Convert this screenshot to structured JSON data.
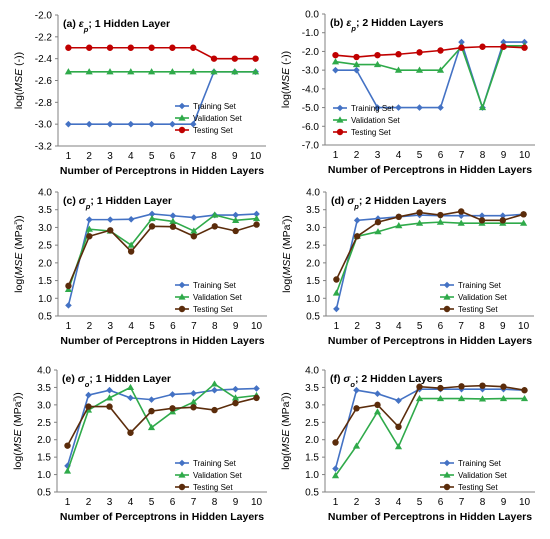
{
  "colors": {
    "training": "#4472C4",
    "validation": "#2FAA4A",
    "testing_red": "#C00000",
    "testing_brown": "#5B2C0B",
    "axis": "#808080"
  },
  "chart_data": [
    {
      "type": "line",
      "title": "(a) εp; 1 Hidden Layer",
      "xlabel": "Number of Perceptrons in Hidden Layers",
      "ylabel": "log(MSE (-))",
      "x": [
        1,
        2,
        3,
        4,
        5,
        6,
        7,
        8,
        9,
        10
      ],
      "ylim": [
        -3.2,
        -2.0
      ],
      "yticks": [
        "-2.0",
        "-2.2",
        "-2.4",
        "-2.6",
        "-2.8",
        "-3.0",
        "-3.2"
      ],
      "legend_position": "bottom-right",
      "series": [
        {
          "name": "Training Set",
          "color": "#4472C4",
          "marker": "diamond",
          "values": [
            -3.0,
            -3.0,
            -3.0,
            -3.0,
            -3.0,
            -3.0,
            -3.0,
            -2.52,
            -2.52,
            -2.52
          ]
        },
        {
          "name": "Validation Set",
          "color": "#2FAA4A",
          "marker": "triangle",
          "values": [
            -2.52,
            -2.52,
            -2.52,
            -2.52,
            -2.52,
            -2.52,
            -2.52,
            -2.52,
            -2.52,
            -2.52
          ]
        },
        {
          "name": "Testing Set",
          "color": "#C00000",
          "marker": "circle",
          "values": [
            -2.3,
            -2.3,
            -2.3,
            -2.3,
            -2.3,
            -2.3,
            -2.3,
            -2.4,
            -2.4,
            -2.4
          ]
        }
      ]
    },
    {
      "type": "line",
      "title": "(b) εp; 2 Hidden Layers",
      "xlabel": "Number of Perceptrons in Hidden Layers",
      "ylabel": "log(MSE (-))",
      "x": [
        1,
        2,
        3,
        4,
        5,
        6,
        7,
        8,
        9,
        10
      ],
      "ylim": [
        -7.0,
        0.0
      ],
      "yticks": [
        "0.0",
        "-1.0",
        "-2.0",
        "-3.0",
        "-4.0",
        "-5.0",
        "-6.0",
        "-7.0"
      ],
      "legend_position": "bottom-left",
      "series": [
        {
          "name": "Training Set",
          "color": "#4472C4",
          "marker": "diamond",
          "values": [
            -3.0,
            -3.0,
            -5.0,
            -5.0,
            -5.0,
            -5.0,
            -1.5,
            -5.0,
            -1.5,
            -1.5
          ]
        },
        {
          "name": "Validation Set",
          "color": "#2FAA4A",
          "marker": "triangle",
          "values": [
            -2.55,
            -2.7,
            -2.7,
            -3.0,
            -3.0,
            -3.0,
            -1.75,
            -5.0,
            -1.7,
            -1.7
          ]
        },
        {
          "name": "Testing Set",
          "color": "#C00000",
          "marker": "circle",
          "values": [
            -2.2,
            -2.3,
            -2.2,
            -2.15,
            -2.05,
            -1.95,
            -1.8,
            -1.75,
            -1.75,
            -1.8
          ]
        }
      ]
    },
    {
      "type": "line",
      "title": "(c) σp; 1 Hidden Layer",
      "xlabel": "Number of Perceptrons in Hidden Layers",
      "ylabel": "log(MSE (MPa²))",
      "x": [
        1,
        2,
        3,
        4,
        5,
        6,
        7,
        8,
        9,
        10
      ],
      "ylim": [
        0.5,
        4.0
      ],
      "yticks": [
        "4.0",
        "3.5",
        "3.0",
        "2.5",
        "2.0",
        "1.5",
        "1.0",
        "0.5"
      ],
      "legend_position": "bottom-right",
      "series": [
        {
          "name": "Training Set",
          "color": "#4472C4",
          "marker": "diamond",
          "values": [
            0.8,
            3.22,
            3.22,
            3.23,
            3.38,
            3.33,
            3.28,
            3.35,
            3.35,
            3.38
          ]
        },
        {
          "name": "Validation Set",
          "color": "#2FAA4A",
          "marker": "triangle",
          "values": [
            1.25,
            2.95,
            2.9,
            2.5,
            3.25,
            3.17,
            2.9,
            3.35,
            3.2,
            3.25
          ]
        },
        {
          "name": "Testing Set",
          "color": "#5B2C0B",
          "marker": "circle",
          "values": [
            1.35,
            2.75,
            2.92,
            2.32,
            3.03,
            3.02,
            2.75,
            3.03,
            2.9,
            3.08
          ]
        }
      ]
    },
    {
      "type": "line",
      "title": "(d) σp; 2 Hidden Layers",
      "xlabel": "Number of Perceptrons in Hidden Layers",
      "ylabel": "log(MSE (MPa²))",
      "x": [
        1,
        2,
        3,
        4,
        5,
        6,
        7,
        8,
        9,
        10
      ],
      "ylim": [
        0.5,
        4.0
      ],
      "yticks": [
        "4.0",
        "3.5",
        "3.0",
        "2.5",
        "2.0",
        "1.5",
        "1.0",
        "0.5"
      ],
      "legend_position": "bottom-right",
      "series": [
        {
          "name": "Training Set",
          "color": "#4472C4",
          "marker": "diamond",
          "values": [
            0.7,
            3.2,
            3.25,
            3.3,
            3.35,
            3.33,
            3.33,
            3.33,
            3.33,
            3.37
          ]
        },
        {
          "name": "Validation Set",
          "color": "#2FAA4A",
          "marker": "triangle",
          "values": [
            1.15,
            2.75,
            2.88,
            3.05,
            3.12,
            3.15,
            3.12,
            3.12,
            3.12,
            3.12
          ]
        },
        {
          "name": "Testing Set",
          "color": "#5B2C0B",
          "marker": "circle",
          "values": [
            1.53,
            2.75,
            3.15,
            3.3,
            3.42,
            3.35,
            3.45,
            3.2,
            3.2,
            3.37
          ]
        }
      ]
    },
    {
      "type": "line",
      "title": "(e) σo; 1 Hidden Layer",
      "xlabel": "Number of Perceptrons in Hidden Layers",
      "ylabel": "log(MSE (MPa²))",
      "x": [
        1,
        2,
        3,
        4,
        5,
        6,
        7,
        8,
        9,
        10
      ],
      "ylim": [
        0.5,
        4.0
      ],
      "yticks": [
        "4.0",
        "3.5",
        "3.0",
        "2.5",
        "2.0",
        "1.5",
        "1.0",
        "0.5"
      ],
      "legend_position": "bottom-right",
      "series": [
        {
          "name": "Training Set",
          "color": "#4472C4",
          "marker": "diamond",
          "values": [
            1.25,
            3.28,
            3.42,
            3.2,
            3.15,
            3.3,
            3.33,
            3.42,
            3.45,
            3.47
          ]
        },
        {
          "name": "Validation Set",
          "color": "#2FAA4A",
          "marker": "triangle",
          "values": [
            1.1,
            2.85,
            3.2,
            3.5,
            2.35,
            2.8,
            3.08,
            3.6,
            3.2,
            3.27
          ]
        },
        {
          "name": "Testing Set",
          "color": "#5B2C0B",
          "marker": "circle",
          "values": [
            1.83,
            2.95,
            2.95,
            2.2,
            2.82,
            2.9,
            2.93,
            2.85,
            3.05,
            3.2
          ]
        }
      ]
    },
    {
      "type": "line",
      "title": "(f) σo; 2 Hidden Layers",
      "xlabel": "Number of Perceptrons in Hidden Layers",
      "ylabel": "log(MSE (MPa²))",
      "x": [
        1,
        2,
        3,
        4,
        5,
        6,
        7,
        8,
        9,
        10
      ],
      "ylim": [
        0.5,
        4.0
      ],
      "yticks": [
        "4.0",
        "3.5",
        "3.0",
        "2.5",
        "2.0",
        "1.5",
        "1.0",
        "0.5"
      ],
      "legend_position": "bottom-right",
      "series": [
        {
          "name": "Training Set",
          "color": "#4472C4",
          "marker": "diamond",
          "values": [
            1.17,
            3.42,
            3.32,
            3.12,
            3.45,
            3.45,
            3.45,
            3.45,
            3.45,
            3.42
          ]
        },
        {
          "name": "Validation Set",
          "color": "#2FAA4A",
          "marker": "triangle",
          "values": [
            0.97,
            1.82,
            2.8,
            1.8,
            3.18,
            3.18,
            3.18,
            3.17,
            3.18,
            3.18
          ]
        },
        {
          "name": "Testing Set",
          "color": "#5B2C0B",
          "marker": "circle",
          "values": [
            1.92,
            2.9,
            3.0,
            2.37,
            3.52,
            3.48,
            3.53,
            3.55,
            3.52,
            3.42
          ]
        }
      ]
    }
  ]
}
